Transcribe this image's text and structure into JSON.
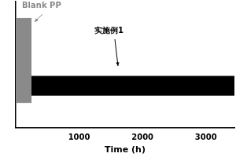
{
  "chart_data": {
    "type": "line",
    "x_label": "Time (h)",
    "xlim": [
      0,
      3450
    ],
    "xticks": [
      1000,
      2000,
      3000
    ],
    "ylim": [
      -0.2,
      0.4
    ],
    "tick_labels": "x",
    "grid": false,
    "series": [
      {
        "name": "Blank PP",
        "color": "#8a8a8a",
        "x": [
          0,
          250
        ],
        "upper": [
          0.32,
          0.32
        ],
        "lower": [
          -0.08,
          -0.08
        ]
      },
      {
        "name": "实施例1",
        "color": "#000000",
        "x": [
          0,
          3450
        ],
        "upper": [
          0.045,
          0.045
        ],
        "lower": [
          -0.045,
          -0.045
        ]
      }
    ]
  }
}
